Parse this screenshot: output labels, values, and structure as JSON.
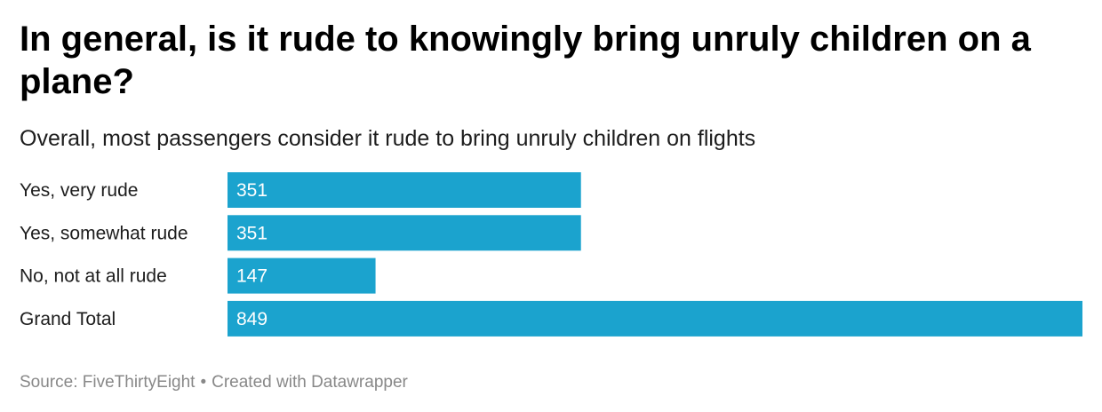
{
  "title": "In general, is it rude to knowingly bring unruly children on a plane?",
  "subtitle": "Overall, most passengers consider it rude to bring unruly children on flights",
  "footer": {
    "source": "Source: FiveThirtyEight",
    "separator": "•",
    "credit": "Created with Datawrapper"
  },
  "colors": {
    "bar": "#1ba3ce"
  },
  "chart_data": {
    "type": "bar",
    "orientation": "horizontal",
    "categories": [
      "Yes, very rude",
      "Yes, somewhat rude",
      "No, not at all rude",
      "Grand Total"
    ],
    "values": [
      351,
      351,
      147,
      849
    ],
    "xlim": [
      0,
      849
    ],
    "grid": false,
    "data_labels": "inside-start"
  }
}
